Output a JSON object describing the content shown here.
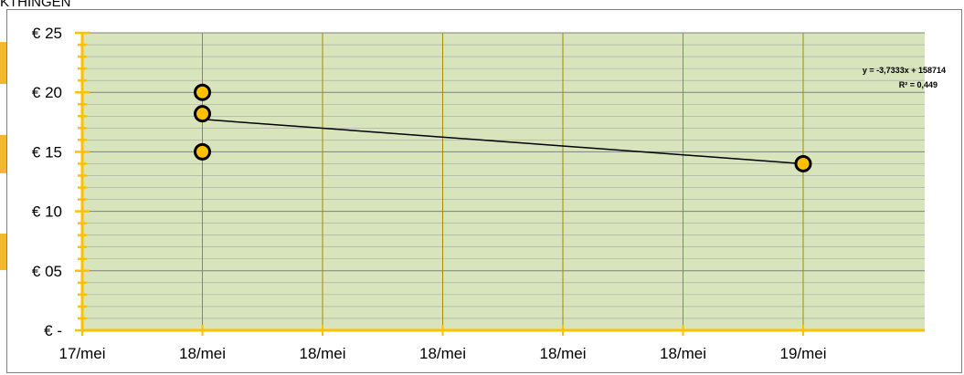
{
  "header": {
    "title_fragment": "KTHINGEN"
  },
  "chart_data": {
    "type": "scatter",
    "title": "",
    "xlabel": "",
    "ylabel": "",
    "ylim": [
      0,
      25
    ],
    "y_major_step": 5,
    "y_minor_step": 1,
    "y_tick_labels": [
      "€ -",
      "€ 05",
      "€ 10",
      "€ 15",
      "€ 20",
      "€ 25"
    ],
    "x_tick_labels": [
      "17/mei",
      "18/mei",
      "18/mei",
      "18/mei",
      "18/mei",
      "18/mei",
      "19/mei"
    ],
    "series": [
      {
        "points": [
          {
            "x": 1,
            "y": 20
          },
          {
            "x": 1,
            "y": 18.2
          },
          {
            "x": 1,
            "y": 15
          },
          {
            "x": 6,
            "y": 14
          }
        ]
      }
    ],
    "trendline": {
      "equation": "y = -3,7333x + 158714",
      "r_squared": "R² = 0,449",
      "from": {
        "x": 1,
        "y": 17.73
      },
      "to": {
        "x": 6,
        "y": 14
      }
    },
    "grid": true,
    "colors": {
      "plot_background": "#d8e4bc",
      "major_grid": "#7f7f7f",
      "minor_grid": "#a6a6a6",
      "vertical_grid": "#a08c00",
      "axis": "#ffc000",
      "marker_fill": "#ffc000",
      "marker_edge": "#000000",
      "trendline": "#000000",
      "side_marker": "#f5b731"
    }
  }
}
